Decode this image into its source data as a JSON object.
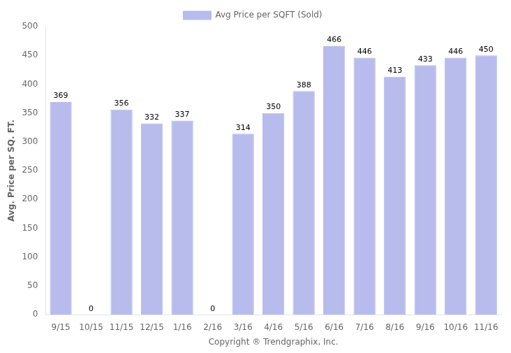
{
  "chart_data": {
    "type": "bar",
    "categories": [
      "9/15",
      "10/15",
      "11/15",
      "12/15",
      "1/16",
      "2/16",
      "3/16",
      "4/16",
      "5/16",
      "6/16",
      "7/16",
      "8/16",
      "9/16",
      "10/16",
      "11/16"
    ],
    "series": [
      {
        "name": "Avg Price per SQFT (Sold)",
        "color": "#b8bcec",
        "values": [
          369,
          0,
          356,
          332,
          337,
          0,
          314,
          350,
          388,
          466,
          446,
          413,
          433,
          446,
          450
        ]
      }
    ],
    "xlabel": "Copyright ® Trendgraphix, Inc.",
    "ylabel": "Avg. Price per SQ. FT.",
    "ylim": [
      0,
      500
    ],
    "yticks": [
      0,
      50,
      100,
      150,
      200,
      250,
      300,
      350,
      400,
      450,
      500
    ],
    "grid": false,
    "legend": "top",
    "data_labels": true
  }
}
